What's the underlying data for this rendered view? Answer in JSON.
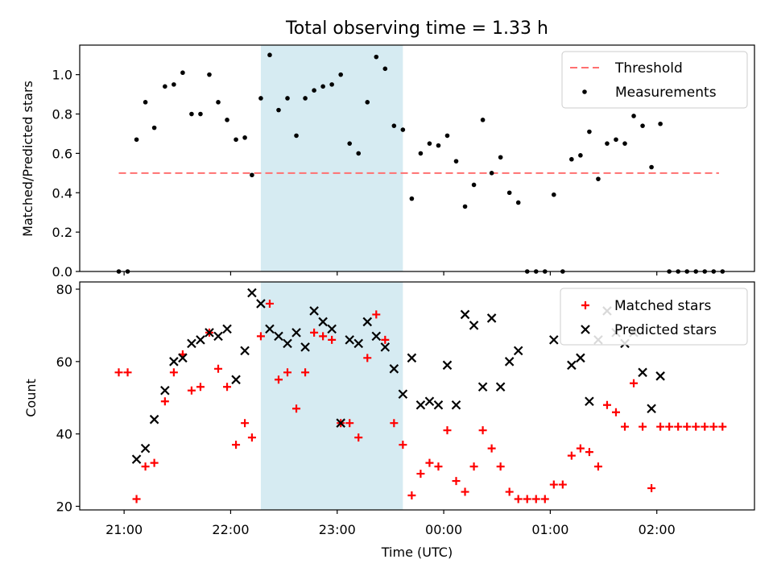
{
  "chart_data": [
    {
      "type": "scatter",
      "title": "Total observing time = 1.33 h",
      "ylabel": "Matched/Predicted stars",
      "xlabel": "",
      "ylim": [
        0,
        1.15
      ],
      "yticks": [
        "0.0",
        "0.2",
        "0.4",
        "0.6",
        "0.8",
        "1.0"
      ],
      "grid": false,
      "legend_position": "top-right",
      "shaded_region": {
        "start": "22:17",
        "end": "23:37",
        "color": "#add8e6"
      },
      "threshold": {
        "name": "Threshold",
        "value": 0.5,
        "x_start": "20:57",
        "x_end": "02:35",
        "color": "#ff7070"
      },
      "series": [
        {
          "name": "Measurements",
          "color": "#000000",
          "points": [
            [
              "20:57",
              0.0
            ],
            [
              "21:02",
              0.0
            ],
            [
              "21:07",
              0.67
            ],
            [
              "21:12",
              0.86
            ],
            [
              "21:17",
              0.73
            ],
            [
              "21:23",
              0.94
            ],
            [
              "21:28",
              0.95
            ],
            [
              "21:33",
              1.01
            ],
            [
              "21:38",
              0.8
            ],
            [
              "21:43",
              0.8
            ],
            [
              "21:48",
              1.0
            ],
            [
              "21:53",
              0.86
            ],
            [
              "21:58",
              0.77
            ],
            [
              "22:03",
              0.67
            ],
            [
              "22:08",
              0.68
            ],
            [
              "22:12",
              0.49
            ],
            [
              "22:17",
              0.88
            ],
            [
              "22:22",
              1.1
            ],
            [
              "22:27",
              0.82
            ],
            [
              "22:32",
              0.88
            ],
            [
              "22:37",
              0.69
            ],
            [
              "22:42",
              0.88
            ],
            [
              "22:47",
              0.92
            ],
            [
              "22:52",
              0.94
            ],
            [
              "22:57",
              0.95
            ],
            [
              "23:02",
              1.0
            ],
            [
              "23:07",
              0.65
            ],
            [
              "23:12",
              0.6
            ],
            [
              "23:17",
              0.86
            ],
            [
              "23:22",
              1.09
            ],
            [
              "23:27",
              1.03
            ],
            [
              "23:32",
              0.74
            ],
            [
              "23:37",
              0.72
            ],
            [
              "23:42",
              0.37
            ],
            [
              "23:47",
              0.6
            ],
            [
              "23:52",
              0.65
            ],
            [
              "23:57",
              0.64
            ],
            [
              "00:02",
              0.69
            ],
            [
              "00:07",
              0.56
            ],
            [
              "00:12",
              0.33
            ],
            [
              "00:17",
              0.44
            ],
            [
              "00:22",
              0.77
            ],
            [
              "00:27",
              0.5
            ],
            [
              "00:32",
              0.58
            ],
            [
              "00:37",
              0.4
            ],
            [
              "00:42",
              0.35
            ],
            [
              "00:47",
              0.0
            ],
            [
              "00:52",
              0.0
            ],
            [
              "00:57",
              0.0
            ],
            [
              "01:02",
              0.39
            ],
            [
              "01:07",
              0.0
            ],
            [
              "01:12",
              0.57
            ],
            [
              "01:17",
              0.59
            ],
            [
              "01:22",
              0.71
            ],
            [
              "01:27",
              0.47
            ],
            [
              "01:32",
              0.65
            ],
            [
              "01:37",
              0.67
            ],
            [
              "01:42",
              0.65
            ],
            [
              "01:47",
              0.79
            ],
            [
              "01:52",
              0.74
            ],
            [
              "01:57",
              0.53
            ],
            [
              "02:02",
              0.75
            ],
            [
              "02:07",
              0.0
            ],
            [
              "02:12",
              0.0
            ],
            [
              "02:17",
              0.0
            ],
            [
              "02:22",
              0.0
            ],
            [
              "02:27",
              0.0
            ],
            [
              "02:32",
              0.0
            ],
            [
              "02:37",
              0.0
            ]
          ]
        }
      ]
    },
    {
      "type": "scatter",
      "title": "",
      "ylabel": "Count",
      "xlabel": "Time (UTC)",
      "ylim": [
        19,
        82
      ],
      "yticks": [
        "20",
        "40",
        "60",
        "80"
      ],
      "xlim": [
        "20:35",
        "02:55"
      ],
      "xticks": [
        "21:00",
        "22:00",
        "23:00",
        "00:00",
        "01:00",
        "02:00"
      ],
      "grid": false,
      "legend_position": "top-right",
      "shaded_region": {
        "start": "22:17",
        "end": "23:37",
        "color": "#add8e6"
      },
      "series": [
        {
          "name": "Matched stars",
          "marker": "+",
          "color": "#ff0000",
          "points": [
            [
              "20:57",
              57
            ],
            [
              "21:02",
              57
            ],
            [
              "21:07",
              22
            ],
            [
              "21:12",
              31
            ],
            [
              "21:17",
              32
            ],
            [
              "21:23",
              49
            ],
            [
              "21:28",
              57
            ],
            [
              "21:33",
              62
            ],
            [
              "21:38",
              52
            ],
            [
              "21:43",
              53
            ],
            [
              "21:48",
              68
            ],
            [
              "21:53",
              58
            ],
            [
              "21:58",
              53
            ],
            [
              "22:03",
              37
            ],
            [
              "22:08",
              43
            ],
            [
              "22:12",
              39
            ],
            [
              "22:17",
              67
            ],
            [
              "22:22",
              76
            ],
            [
              "22:27",
              55
            ],
            [
              "22:32",
              57
            ],
            [
              "22:37",
              47
            ],
            [
              "22:42",
              57
            ],
            [
              "22:47",
              68
            ],
            [
              "22:52",
              67
            ],
            [
              "22:57",
              66
            ],
            [
              "23:02",
              43
            ],
            [
              "23:07",
              43
            ],
            [
              "23:12",
              39
            ],
            [
              "23:17",
              61
            ],
            [
              "23:22",
              73
            ],
            [
              "23:27",
              66
            ],
            [
              "23:32",
              43
            ],
            [
              "23:37",
              37
            ],
            [
              "23:42",
              23
            ],
            [
              "23:47",
              29
            ],
            [
              "23:52",
              32
            ],
            [
              "23:57",
              31
            ],
            [
              "00:02",
              41
            ],
            [
              "00:07",
              27
            ],
            [
              "00:12",
              24
            ],
            [
              "00:17",
              31
            ],
            [
              "00:22",
              41
            ],
            [
              "00:27",
              36
            ],
            [
              "00:32",
              31
            ],
            [
              "00:37",
              24
            ],
            [
              "00:42",
              22
            ],
            [
              "00:47",
              22
            ],
            [
              "00:52",
              22
            ],
            [
              "00:57",
              22
            ],
            [
              "01:02",
              26
            ],
            [
              "01:07",
              26
            ],
            [
              "01:12",
              34
            ],
            [
              "01:17",
              36
            ],
            [
              "01:22",
              35
            ],
            [
              "01:27",
              31
            ],
            [
              "01:32",
              48
            ],
            [
              "01:37",
              46
            ],
            [
              "01:42",
              42
            ],
            [
              "01:47",
              54
            ],
            [
              "01:52",
              42
            ],
            [
              "01:57",
              25
            ],
            [
              "02:02",
              42
            ],
            [
              "02:07",
              42
            ],
            [
              "02:12",
              42
            ],
            [
              "02:17",
              42
            ],
            [
              "02:22",
              42
            ],
            [
              "02:27",
              42
            ],
            [
              "02:32",
              42
            ],
            [
              "02:37",
              42
            ]
          ]
        },
        {
          "name": "Predicted stars",
          "marker": "x",
          "color": "#000000",
          "points": [
            [
              "21:07",
              33
            ],
            [
              "21:12",
              36
            ],
            [
              "21:17",
              44
            ],
            [
              "21:23",
              52
            ],
            [
              "21:28",
              60
            ],
            [
              "21:33",
              61
            ],
            [
              "21:38",
              65
            ],
            [
              "21:43",
              66
            ],
            [
              "21:48",
              68
            ],
            [
              "21:53",
              67
            ],
            [
              "21:58",
              69
            ],
            [
              "22:03",
              55
            ],
            [
              "22:08",
              63
            ],
            [
              "22:12",
              79
            ],
            [
              "22:17",
              76
            ],
            [
              "22:22",
              69
            ],
            [
              "22:27",
              67
            ],
            [
              "22:32",
              65
            ],
            [
              "22:37",
              68
            ],
            [
              "22:42",
              64
            ],
            [
              "22:47",
              74
            ],
            [
              "22:52",
              71
            ],
            [
              "22:57",
              69
            ],
            [
              "23:02",
              43
            ],
            [
              "23:07",
              66
            ],
            [
              "23:12",
              65
            ],
            [
              "23:17",
              71
            ],
            [
              "23:22",
              67
            ],
            [
              "23:27",
              64
            ],
            [
              "23:32",
              58
            ],
            [
              "23:37",
              51
            ],
            [
              "23:42",
              61
            ],
            [
              "23:47",
              48
            ],
            [
              "23:52",
              49
            ],
            [
              "23:57",
              48
            ],
            [
              "00:02",
              59
            ],
            [
              "00:07",
              48
            ],
            [
              "00:12",
              73
            ],
            [
              "00:17",
              70
            ],
            [
              "00:22",
              53
            ],
            [
              "00:27",
              72
            ],
            [
              "00:32",
              53
            ],
            [
              "00:37",
              60
            ],
            [
              "00:42",
              63
            ],
            [
              "01:02",
              66
            ],
            [
              "01:12",
              59
            ],
            [
              "01:17",
              61
            ],
            [
              "01:22",
              49
            ],
            [
              "01:27",
              66
            ],
            [
              "01:32",
              74
            ],
            [
              "01:37",
              68
            ],
            [
              "01:42",
              65
            ],
            [
              "01:47",
              68
            ],
            [
              "01:52",
              57
            ],
            [
              "01:57",
              47
            ],
            [
              "02:02",
              56
            ]
          ]
        }
      ]
    }
  ]
}
